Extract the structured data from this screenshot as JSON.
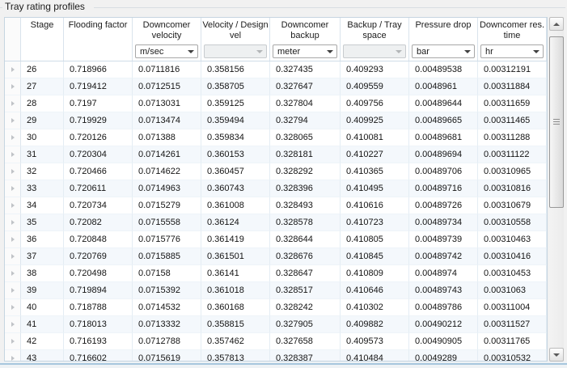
{
  "panel": {
    "title": "Tray rating profiles"
  },
  "table": {
    "columns": [
      {
        "key": "stage",
        "label": "Stage"
      },
      {
        "key": "flooding_factor",
        "label": "Flooding factor"
      },
      {
        "key": "downcomer_velocity",
        "label": "Downcomer velocity",
        "unit": "m/sec",
        "unit_enabled": true
      },
      {
        "key": "velocity_design_vel",
        "label": "Velocity / Design vel",
        "unit": "",
        "unit_enabled": false
      },
      {
        "key": "downcomer_backup",
        "label": "Downcomer backup",
        "unit": "meter",
        "unit_enabled": true
      },
      {
        "key": "backup_tray_space",
        "label": "Backup / Tray space",
        "unit": "",
        "unit_enabled": false
      },
      {
        "key": "pressure_drop",
        "label": "Pressure drop",
        "unit": "bar",
        "unit_enabled": true
      },
      {
        "key": "downcomer_res_time",
        "label": "Downcomer res. time",
        "unit": "hr",
        "unit_enabled": true
      }
    ],
    "rows": [
      [
        "26",
        "0.718966",
        "0.0711816",
        "0.358156",
        "0.327435",
        "0.409293",
        "0.00489538",
        "0.00312191"
      ],
      [
        "27",
        "0.719412",
        "0.0712515",
        "0.358705",
        "0.327647",
        "0.409559",
        "0.0048961",
        "0.00311884"
      ],
      [
        "28",
        "0.7197",
        "0.0713031",
        "0.359125",
        "0.327804",
        "0.409756",
        "0.00489644",
        "0.00311659"
      ],
      [
        "29",
        "0.719929",
        "0.0713474",
        "0.359494",
        "0.32794",
        "0.409925",
        "0.00489665",
        "0.00311465"
      ],
      [
        "30",
        "0.720126",
        "0.071388",
        "0.359834",
        "0.328065",
        "0.410081",
        "0.00489681",
        "0.00311288"
      ],
      [
        "31",
        "0.720304",
        "0.0714261",
        "0.360153",
        "0.328181",
        "0.410227",
        "0.00489694",
        "0.00311122"
      ],
      [
        "32",
        "0.720466",
        "0.0714622",
        "0.360457",
        "0.328292",
        "0.410365",
        "0.00489706",
        "0.00310965"
      ],
      [
        "33",
        "0.720611",
        "0.0714963",
        "0.360743",
        "0.328396",
        "0.410495",
        "0.00489716",
        "0.00310816"
      ],
      [
        "34",
        "0.720734",
        "0.0715279",
        "0.361008",
        "0.328493",
        "0.410616",
        "0.00489726",
        "0.00310679"
      ],
      [
        "35",
        "0.72082",
        "0.0715558",
        "0.36124",
        "0.328578",
        "0.410723",
        "0.00489734",
        "0.00310558"
      ],
      [
        "36",
        "0.720848",
        "0.0715776",
        "0.361419",
        "0.328644",
        "0.410805",
        "0.00489739",
        "0.00310463"
      ],
      [
        "37",
        "0.720769",
        "0.0715885",
        "0.361501",
        "0.328676",
        "0.410845",
        "0.00489742",
        "0.00310416"
      ],
      [
        "38",
        "0.720498",
        "0.07158",
        "0.36141",
        "0.328647",
        "0.410809",
        "0.0048974",
        "0.00310453"
      ],
      [
        "39",
        "0.719894",
        "0.0715392",
        "0.361018",
        "0.328517",
        "0.410646",
        "0.00489743",
        "0.0031063"
      ],
      [
        "40",
        "0.718788",
        "0.0714532",
        "0.360168",
        "0.328242",
        "0.410302",
        "0.00489786",
        "0.00311004"
      ],
      [
        "41",
        "0.718013",
        "0.0713332",
        "0.358815",
        "0.327905",
        "0.409882",
        "0.00490212",
        "0.00311527"
      ],
      [
        "42",
        "0.716193",
        "0.0712788",
        "0.357462",
        "0.327658",
        "0.409573",
        "0.00490905",
        "0.00311765"
      ],
      [
        "43",
        "0.716602",
        "0.0715619",
        "0.357813",
        "0.328387",
        "0.410484",
        "0.0049289",
        "0.00310532"
      ]
    ]
  }
}
